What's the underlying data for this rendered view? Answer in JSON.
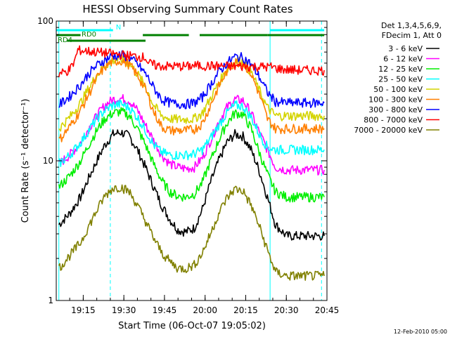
{
  "chart_data": {
    "type": "line",
    "title": "HESSI Observing Summary Count Rates",
    "xlabel": "Start Time (06-Oct-07 19:05:02)",
    "ylabel": "Count Rate (s⁻¹ detector⁻¹)",
    "y_scale": "log",
    "ylim": [
      1,
      100
    ],
    "xlim": [
      "19:05:02",
      "20:45:00"
    ],
    "x_ticks": [
      "19:15",
      "19:30",
      "19:45",
      "20:00",
      "20:15",
      "20:30",
      "20:45"
    ],
    "y_ticks": [
      "1",
      "10",
      "100"
    ],
    "grid": false,
    "legend_position": "right",
    "legend_header": [
      "Det 1,3,4,5,6,9,",
      "FDecim 1, Att 0"
    ],
    "footer_date": "12-Feb-2010 05:00",
    "series": [
      {
        "name": "3 - 6 keV",
        "color": "#000000",
        "x": [
          "19:06",
          "19:10",
          "19:14",
          "19:17",
          "19:20",
          "19:23",
          "19:26",
          "19:29",
          "19:32",
          "19:35",
          "19:38",
          "19:41",
          "19:44",
          "19:47",
          "19:50",
          "19:53",
          "19:56",
          "19:59",
          "20:02",
          "20:05",
          "20:08",
          "20:11",
          "20:14",
          "20:17",
          "20:20",
          "20:23",
          "20:26",
          "20:30",
          "20:35",
          "20:40",
          "20:44"
        ],
        "y": [
          3.5,
          4.2,
          5.5,
          7.5,
          10,
          13,
          15.5,
          16,
          15,
          12,
          9,
          6.5,
          4.8,
          3.8,
          3.2,
          3.1,
          3.3,
          4.5,
          7,
          10,
          13.5,
          15.5,
          15,
          12,
          8.5,
          5.5,
          3.5,
          2.9,
          2.9,
          2.9,
          2.9
        ]
      },
      {
        "name": "6 - 12 keV",
        "color": "#ff00ff",
        "x": [
          "19:06",
          "19:10",
          "19:14",
          "19:17",
          "19:20",
          "19:23",
          "19:26",
          "19:29",
          "19:32",
          "19:35",
          "19:38",
          "19:41",
          "19:44",
          "19:47",
          "19:50",
          "19:53",
          "19:56",
          "19:59",
          "20:02",
          "20:05",
          "20:08",
          "20:11",
          "20:14",
          "20:17",
          "20:20",
          "20:23",
          "20:26",
          "20:30",
          "20:35",
          "20:40",
          "20:44"
        ],
        "y": [
          9.5,
          11,
          13.5,
          17,
          21,
          25,
          27.5,
          28,
          27,
          23,
          18,
          14,
          11,
          9.5,
          9,
          8.8,
          9,
          10.5,
          14,
          19,
          24,
          27.5,
          27,
          22,
          16,
          12,
          9,
          8.6,
          8.6,
          8.6,
          8.6
        ]
      },
      {
        "name": "12 - 25 keV",
        "color": "#00ee00",
        "x": [
          "19:06",
          "19:10",
          "19:14",
          "19:17",
          "19:20",
          "19:23",
          "19:26",
          "19:29",
          "19:32",
          "19:35",
          "19:38",
          "19:41",
          "19:44",
          "19:47",
          "19:50",
          "19:53",
          "19:56",
          "19:59",
          "20:02",
          "20:05",
          "20:08",
          "20:11",
          "20:14",
          "20:17",
          "20:20",
          "20:23",
          "20:26",
          "20:30",
          "20:35",
          "20:40",
          "20:44"
        ],
        "y": [
          6.5,
          7.8,
          10,
          13,
          16.5,
          20,
          22,
          22.5,
          21,
          17,
          13,
          9.5,
          7.2,
          6,
          5.6,
          5.5,
          5.8,
          7,
          10,
          14,
          18.5,
          22,
          21.5,
          17,
          11.5,
          8,
          6,
          5.5,
          5.5,
          5.5,
          5.5
        ]
      },
      {
        "name": "25 - 50 keV",
        "color": "#00ffff",
        "x": [
          "19:06",
          "19:10",
          "19:14",
          "19:17",
          "19:20",
          "19:23",
          "19:26",
          "19:29",
          "19:32",
          "19:35",
          "19:38",
          "19:41",
          "19:44",
          "19:47",
          "19:50",
          "19:53",
          "19:56",
          "19:59",
          "20:02",
          "20:05",
          "20:08",
          "20:11",
          "20:14",
          "20:17",
          "20:20",
          "20:23",
          "20:26",
          "20:30",
          "20:35",
          "20:40",
          "20:44"
        ],
        "y": [
          9.5,
          11,
          13.5,
          16.5,
          20,
          23,
          25,
          25.5,
          24,
          20.5,
          16.5,
          13,
          11.5,
          11,
          11,
          11,
          11.2,
          12,
          14.5,
          18,
          22,
          25,
          24.5,
          20.5,
          15.5,
          12.5,
          12,
          12,
          12,
          12,
          12
        ]
      },
      {
        "name": "50 - 100 keV",
        "color": "#d4d400",
        "x": [
          "19:06",
          "19:10",
          "19:14",
          "19:17",
          "19:20",
          "19:23",
          "19:26",
          "19:29",
          "19:32",
          "19:35",
          "19:38",
          "19:41",
          "19:44",
          "19:47",
          "19:50",
          "19:53",
          "19:56",
          "19:59",
          "20:02",
          "20:05",
          "20:08",
          "20:11",
          "20:14",
          "20:17",
          "20:20",
          "20:23",
          "20:26",
          "20:30",
          "20:35",
          "20:40",
          "20:44"
        ],
        "y": [
          17,
          20.5,
          26,
          33,
          41,
          48,
          52.5,
          53,
          50,
          42,
          34,
          25,
          21,
          20,
          19.8,
          19.8,
          20,
          22,
          28,
          36,
          45,
          52,
          51.5,
          43,
          32,
          24,
          21,
          21,
          21,
          21,
          21
        ]
      },
      {
        "name": "100 - 300 keV",
        "color": "#ff7f00",
        "x": [
          "19:06",
          "19:10",
          "19:14",
          "19:17",
          "19:20",
          "19:23",
          "19:26",
          "19:29",
          "19:32",
          "19:35",
          "19:38",
          "19:41",
          "19:44",
          "19:47",
          "19:50",
          "19:53",
          "19:56",
          "19:59",
          "20:02",
          "20:05",
          "20:08",
          "20:11",
          "20:14",
          "20:17",
          "20:20",
          "20:23",
          "20:26",
          "20:30",
          "20:35",
          "20:40",
          "20:44"
        ],
        "y": [
          14,
          17.5,
          23,
          30,
          39,
          47,
          51.5,
          52,
          49,
          41,
          32.5,
          22.5,
          17.5,
          16.5,
          16.5,
          16.5,
          16.8,
          18.5,
          25,
          34,
          43.5,
          51,
          50.5,
          42,
          30,
          20,
          17,
          17,
          17,
          17,
          17
        ]
      },
      {
        "name": "300 - 800 keV",
        "color": "#0000ff",
        "x": [
          "19:06",
          "19:10",
          "19:14",
          "19:17",
          "19:20",
          "19:23",
          "19:26",
          "19:29",
          "19:32",
          "19:35",
          "19:38",
          "19:41",
          "19:44",
          "19:47",
          "19:50",
          "19:53",
          "19:56",
          "19:59",
          "20:02",
          "20:05",
          "20:08",
          "20:11",
          "20:14",
          "20:17",
          "20:20",
          "20:23",
          "20:26",
          "20:30",
          "20:35",
          "20:40",
          "20:44"
        ],
        "y": [
          25,
          29,
          35,
          42,
          48,
          53,
          56.5,
          57,
          55,
          49,
          42,
          33.5,
          27.5,
          26,
          25.5,
          25.5,
          26,
          28.5,
          35,
          43,
          50,
          55.5,
          55,
          49,
          40,
          31,
          26.5,
          26,
          26,
          26,
          26
        ]
      },
      {
        "name": "800 - 7000 keV",
        "color": "#ff0000",
        "x": [
          "19:06",
          "19:08",
          "19:10",
          "19:11",
          "19:12",
          "19:13",
          "19:38",
          "19:39",
          "19:42",
          "19:46",
          "19:50",
          "19:54",
          "19:56",
          "20:25",
          "20:26",
          "20:30",
          "20:35",
          "20:40",
          "20:44"
        ],
        "y": [
          42,
          43,
          45,
          48,
          53,
          62,
          55,
          50,
          48,
          47.5,
          47.5,
          47.5,
          48,
          47,
          46,
          45,
          44.5,
          44.5,
          44.5
        ]
      },
      {
        "name": "7000 - 20000 keV",
        "color": "#808000",
        "x": [
          "19:06",
          "19:10",
          "19:14",
          "19:17",
          "19:20",
          "19:23",
          "19:26",
          "19:29",
          "19:32",
          "19:35",
          "19:38",
          "19:41",
          "19:44",
          "19:47",
          "19:50",
          "19:53",
          "19:56",
          "19:59",
          "20:02",
          "20:05",
          "20:08",
          "20:11",
          "20:14",
          "20:17",
          "20:20",
          "20:23",
          "20:26",
          "20:30",
          "20:35",
          "20:40",
          "20:44"
        ],
        "y": [
          1.7,
          2.1,
          2.6,
          3.4,
          4.4,
          5.6,
          6.4,
          6.5,
          6,
          4.8,
          3.7,
          2.8,
          2.2,
          1.9,
          1.7,
          1.7,
          1.8,
          2.2,
          3,
          4.2,
          5.4,
          6.3,
          6.1,
          4.8,
          3.4,
          2.3,
          1.6,
          1.5,
          1.5,
          1.5,
          1.5
        ]
      }
    ],
    "annotations": [
      {
        "label": "N",
        "color": "#00ffff",
        "segments": [
          [
            "19:05",
            "19:26"
          ],
          [
            "20:24",
            "20:44"
          ]
        ]
      },
      {
        "label": "RD0",
        "color": "#008000",
        "segments": [
          [
            "19:05",
            "19:14"
          ],
          [
            "19:37",
            "19:54"
          ],
          [
            "19:58",
            "20:23"
          ],
          [
            "20:23",
            "20:44"
          ]
        ]
      },
      {
        "label": "RD4",
        "color": "#008000",
        "segments": [
          [
            "19:09",
            "19:38"
          ]
        ]
      }
    ],
    "vertical_markers": [
      {
        "x": "19:06",
        "style": "solid",
        "color": "#00ffff"
      },
      {
        "x": "19:25",
        "style": "dashed",
        "color": "#00ffff"
      },
      {
        "x": "20:24",
        "style": "solid",
        "color": "#00ffff"
      },
      {
        "x": "20:43",
        "style": "dashed",
        "color": "#00ffff"
      }
    ]
  }
}
